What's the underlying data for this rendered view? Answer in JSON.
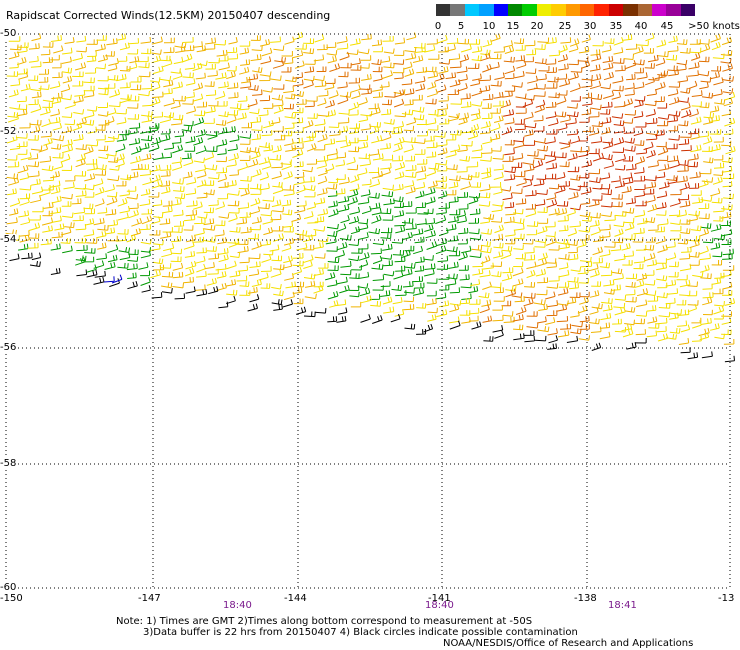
{
  "title": "Rapidscat Corrected Winds(12.5KM) 20150407 descending",
  "legend": {
    "labels": [
      "0",
      "5",
      "10",
      "15",
      "20",
      "25",
      "30",
      "35",
      "40",
      "45",
      ">50 knots"
    ],
    "colors": [
      "#333333",
      "#777777",
      "#00c8ff",
      "#00a0ff",
      "#0000ff",
      "#008800",
      "#00cc00",
      "#eeee00",
      "#ffcc00",
      "#ff9900",
      "#ff6600",
      "#ff2200",
      "#cc0000",
      "#7a3000",
      "#aa6633",
      "#cc00cc",
      "#990099",
      "#3a0066"
    ]
  },
  "map": {
    "latitude_labels": [
      "-50",
      "-52",
      "-54",
      "-56",
      "-58",
      "-60"
    ],
    "longitude_labels": [
      "-150",
      "-147",
      "-144",
      "-141",
      "-138",
      "-13"
    ],
    "time_labels": [
      "18:40",
      "18:40",
      "18:41"
    ],
    "wind_colors": {
      "black": "#000000",
      "green": "#009900",
      "yellow": "#f5e000",
      "gold": "#f0b400",
      "orange": "#e07000",
      "red": "#cc3000",
      "blue": "#0000cc"
    }
  },
  "notes": {
    "line1": "Note: 1) Times are GMT 2)Times along bottom correspond to measurement at -50S",
    "line2": "3)Data buffer is 22 hrs from 20150407 4) Black circles indicate possible contamination",
    "credit": "NOAA/NESDIS/Office of Research and Applications"
  }
}
